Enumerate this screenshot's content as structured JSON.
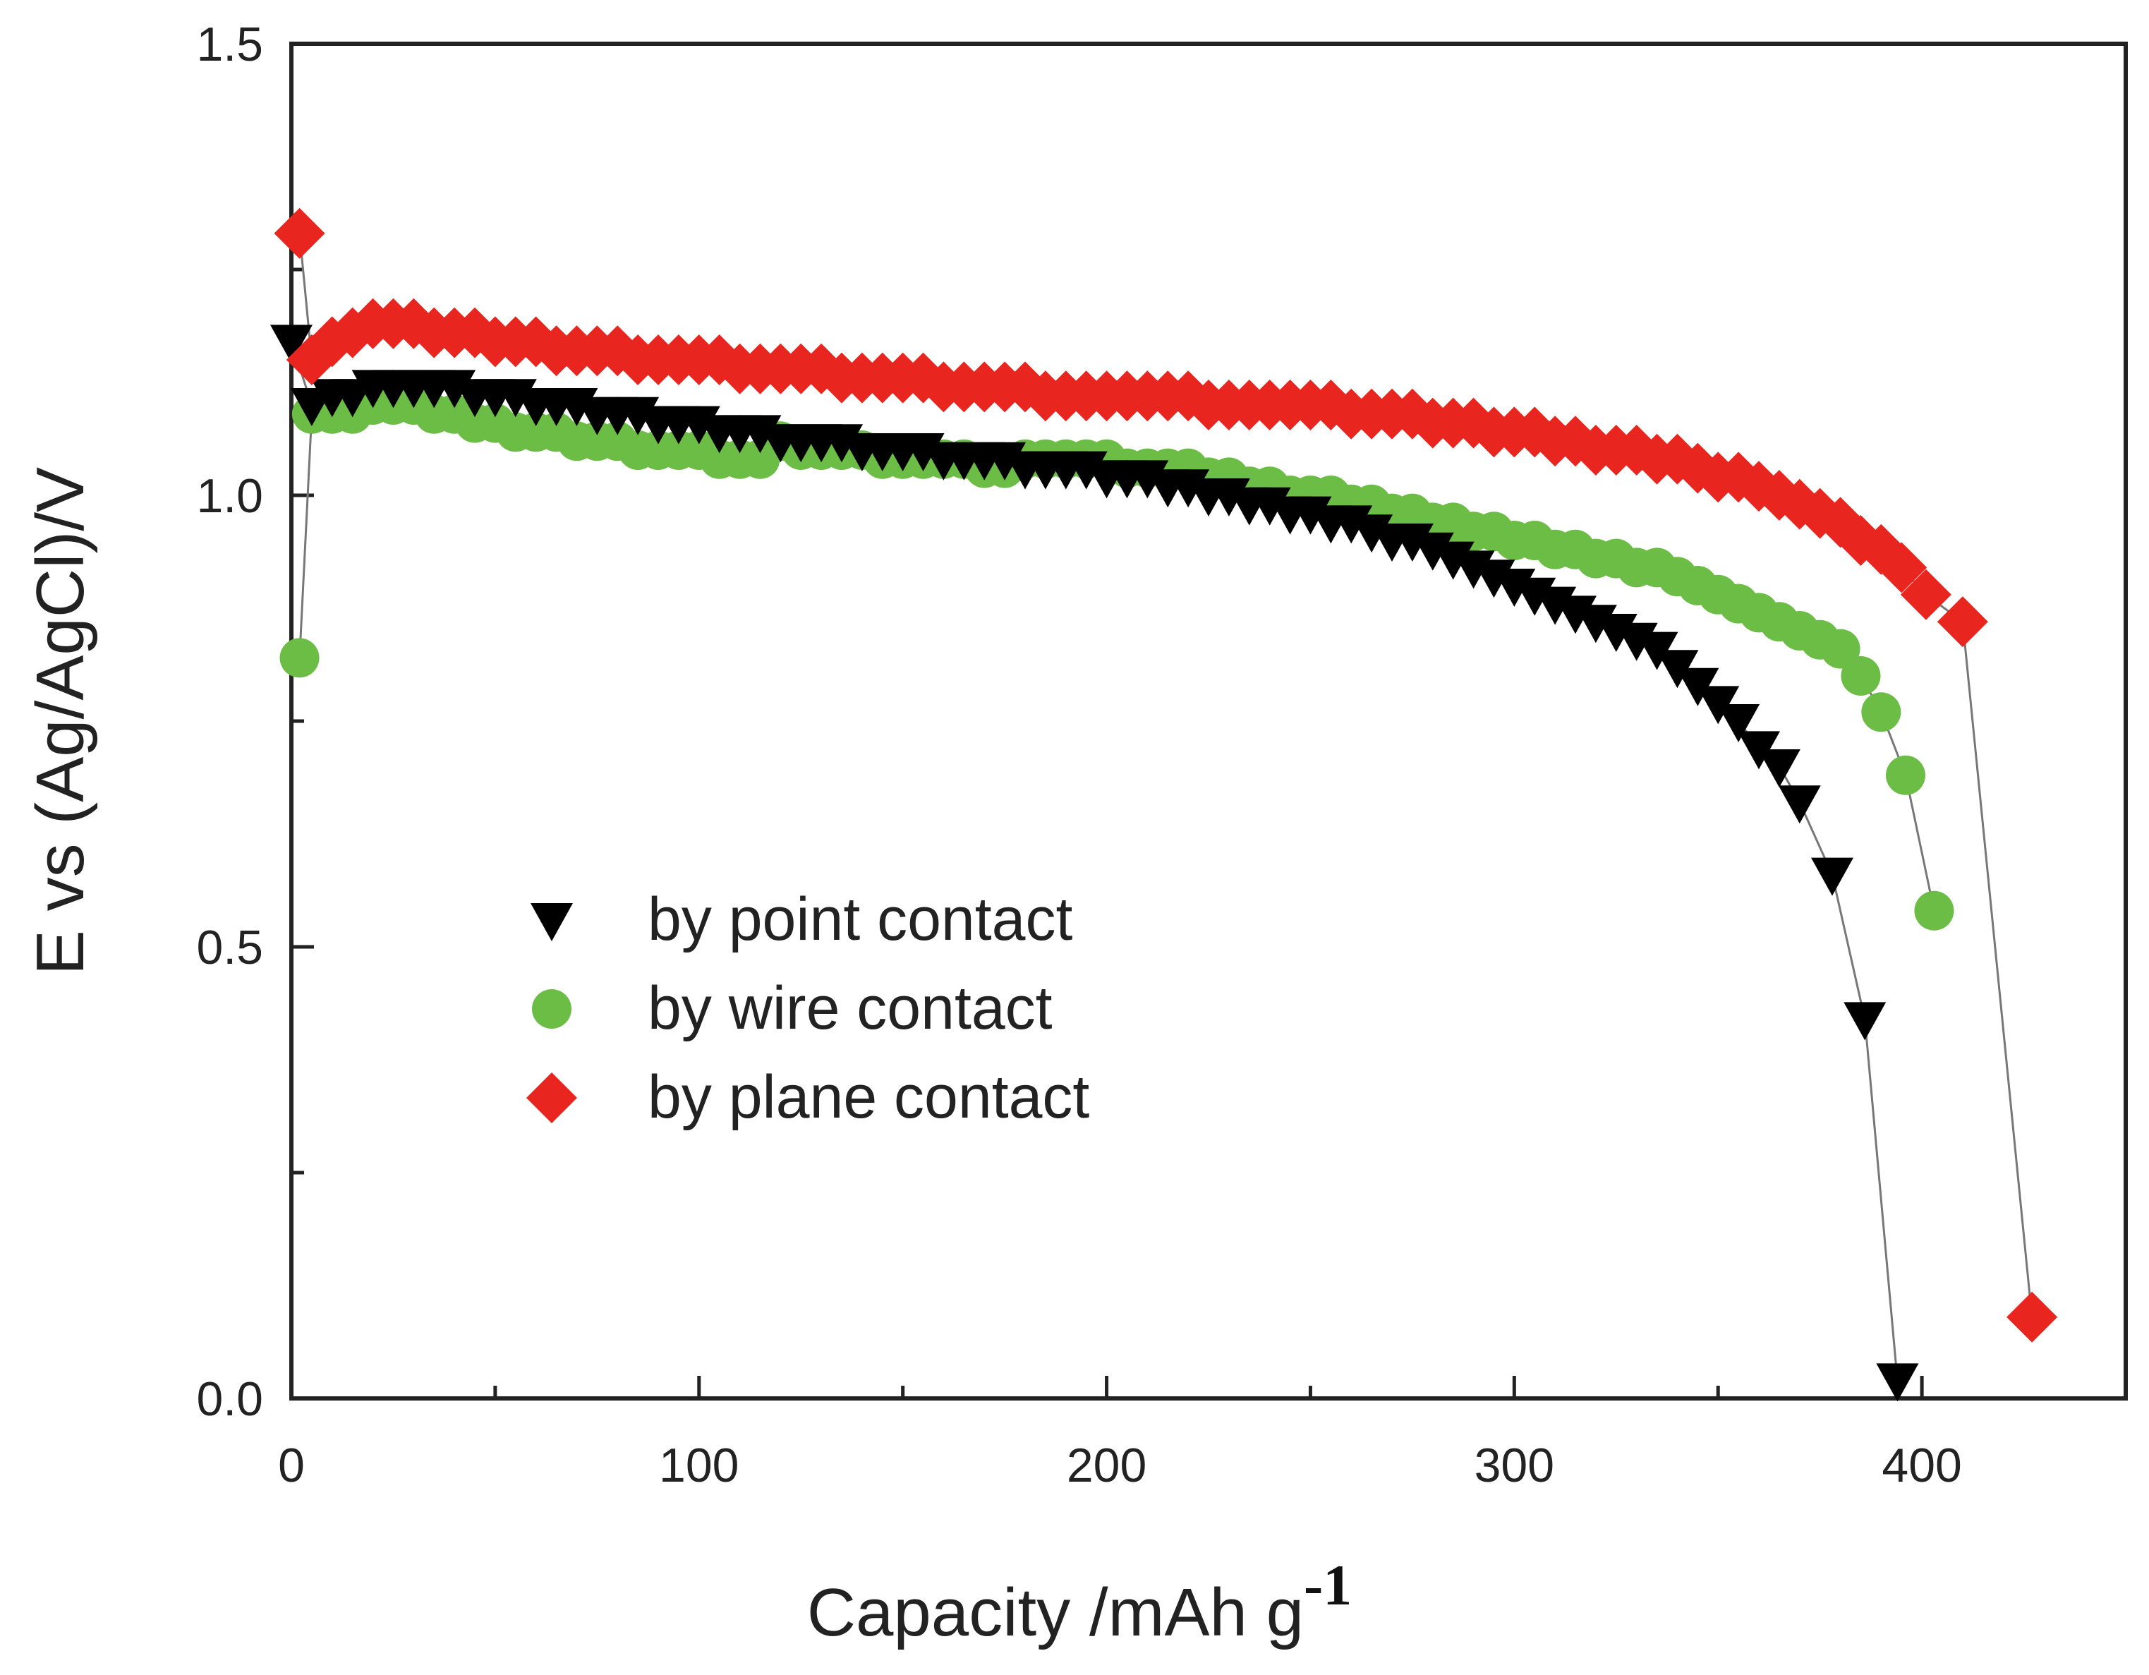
{
  "chart_data": {
    "type": "scatter",
    "title": "",
    "xlabel": "Capacity /mAh g",
    "xlabel_superscript": "-1",
    "ylabel": "E vs (Ag/AgCl)/V",
    "xlim": [
      0,
      450
    ],
    "ylim": [
      0,
      1.5
    ],
    "x_ticks": [
      "0",
      "100",
      "200",
      "300",
      "400"
    ],
    "y_ticks": [
      "0.0",
      "0.5",
      "1.0",
      "1.5"
    ],
    "grid": false,
    "legend_position": "middle-left",
    "series": [
      {
        "name": "by point contact",
        "marker": "triangle-down",
        "color": "#000000",
        "points": [
          [
            0,
            1.17
          ],
          [
            5,
            1.1
          ],
          [
            10,
            1.11
          ],
          [
            15,
            1.11
          ],
          [
            20,
            1.12
          ],
          [
            25,
            1.12
          ],
          [
            30,
            1.12
          ],
          [
            35,
            1.12
          ],
          [
            40,
            1.12
          ],
          [
            45,
            1.11
          ],
          [
            50,
            1.11
          ],
          [
            55,
            1.11
          ],
          [
            60,
            1.1
          ],
          [
            65,
            1.1
          ],
          [
            70,
            1.1
          ],
          [
            75,
            1.09
          ],
          [
            80,
            1.09
          ],
          [
            85,
            1.09
          ],
          [
            90,
            1.08
          ],
          [
            95,
            1.08
          ],
          [
            100,
            1.08
          ],
          [
            105,
            1.07
          ],
          [
            110,
            1.07
          ],
          [
            115,
            1.07
          ],
          [
            120,
            1.06
          ],
          [
            125,
            1.06
          ],
          [
            130,
            1.06
          ],
          [
            135,
            1.06
          ],
          [
            140,
            1.05
          ],
          [
            145,
            1.05
          ],
          [
            150,
            1.05
          ],
          [
            155,
            1.05
          ],
          [
            160,
            1.04
          ],
          [
            165,
            1.04
          ],
          [
            170,
            1.04
          ],
          [
            175,
            1.04
          ],
          [
            180,
            1.03
          ],
          [
            185,
            1.03
          ],
          [
            190,
            1.03
          ],
          [
            195,
            1.03
          ],
          [
            200,
            1.02
          ],
          [
            205,
            1.02
          ],
          [
            210,
            1.02
          ],
          [
            215,
            1.01
          ],
          [
            220,
            1.01
          ],
          [
            225,
            1.0
          ],
          [
            230,
            1.0
          ],
          [
            235,
            0.99
          ],
          [
            240,
            0.99
          ],
          [
            245,
            0.98
          ],
          [
            250,
            0.98
          ],
          [
            255,
            0.97
          ],
          [
            260,
            0.97
          ],
          [
            265,
            0.96
          ],
          [
            270,
            0.95
          ],
          [
            275,
            0.95
          ],
          [
            280,
            0.94
          ],
          [
            285,
            0.93
          ],
          [
            290,
            0.92
          ],
          [
            295,
            0.91
          ],
          [
            300,
            0.9
          ],
          [
            305,
            0.89
          ],
          [
            310,
            0.88
          ],
          [
            315,
            0.87
          ],
          [
            320,
            0.86
          ],
          [
            325,
            0.85
          ],
          [
            330,
            0.84
          ],
          [
            335,
            0.83
          ],
          [
            340,
            0.81
          ],
          [
            345,
            0.79
          ],
          [
            350,
            0.77
          ],
          [
            355,
            0.75
          ],
          [
            360,
            0.72
          ],
          [
            365,
            0.7
          ],
          [
            370,
            0.66
          ],
          [
            378,
            0.58
          ],
          [
            386,
            0.42
          ],
          [
            394,
            0.02
          ]
        ]
      },
      {
        "name": "by wire contact",
        "marker": "circle",
        "color": "#6cbd45",
        "points": [
          [
            2,
            0.82
          ],
          [
            5,
            1.09
          ],
          [
            10,
            1.09
          ],
          [
            15,
            1.09
          ],
          [
            20,
            1.1
          ],
          [
            25,
            1.1
          ],
          [
            30,
            1.1
          ],
          [
            35,
            1.09
          ],
          [
            40,
            1.09
          ],
          [
            45,
            1.08
          ],
          [
            50,
            1.08
          ],
          [
            55,
            1.07
          ],
          [
            60,
            1.07
          ],
          [
            65,
            1.07
          ],
          [
            70,
            1.06
          ],
          [
            75,
            1.06
          ],
          [
            80,
            1.06
          ],
          [
            85,
            1.05
          ],
          [
            90,
            1.05
          ],
          [
            95,
            1.05
          ],
          [
            100,
            1.05
          ],
          [
            105,
            1.04
          ],
          [
            110,
            1.04
          ],
          [
            115,
            1.04
          ],
          [
            120,
            1.06
          ],
          [
            125,
            1.05
          ],
          [
            130,
            1.05
          ],
          [
            135,
            1.05
          ],
          [
            140,
            1.05
          ],
          [
            145,
            1.04
          ],
          [
            150,
            1.04
          ],
          [
            155,
            1.04
          ],
          [
            160,
            1.04
          ],
          [
            165,
            1.04
          ],
          [
            170,
            1.03
          ],
          [
            175,
            1.03
          ],
          [
            180,
            1.04
          ],
          [
            185,
            1.04
          ],
          [
            190,
            1.04
          ],
          [
            195,
            1.04
          ],
          [
            200,
            1.04
          ],
          [
            205,
            1.03
          ],
          [
            210,
            1.03
          ],
          [
            215,
            1.03
          ],
          [
            220,
            1.03
          ],
          [
            225,
            1.02
          ],
          [
            230,
            1.02
          ],
          [
            235,
            1.01
          ],
          [
            240,
            1.01
          ],
          [
            245,
            1.0
          ],
          [
            250,
            1.0
          ],
          [
            255,
            1.0
          ],
          [
            260,
            0.99
          ],
          [
            265,
            0.99
          ],
          [
            270,
            0.98
          ],
          [
            275,
            0.98
          ],
          [
            280,
            0.97
          ],
          [
            285,
            0.97
          ],
          [
            290,
            0.96
          ],
          [
            295,
            0.96
          ],
          [
            300,
            0.95
          ],
          [
            305,
            0.95
          ],
          [
            310,
            0.94
          ],
          [
            315,
            0.94
          ],
          [
            320,
            0.93
          ],
          [
            325,
            0.93
          ],
          [
            330,
            0.92
          ],
          [
            335,
            0.92
          ],
          [
            340,
            0.91
          ],
          [
            345,
            0.9
          ],
          [
            350,
            0.89
          ],
          [
            355,
            0.88
          ],
          [
            360,
            0.87
          ],
          [
            365,
            0.86
          ],
          [
            370,
            0.85
          ],
          [
            375,
            0.84
          ],
          [
            380,
            0.83
          ],
          [
            385,
            0.8
          ],
          [
            390,
            0.76
          ],
          [
            396,
            0.69
          ],
          [
            403,
            0.54
          ]
        ]
      },
      {
        "name": "by plane contact",
        "marker": "diamond",
        "color": "#e8251f",
        "points": [
          [
            2,
            1.29
          ],
          [
            5,
            1.15
          ],
          [
            10,
            1.17
          ],
          [
            15,
            1.18
          ],
          [
            20,
            1.19
          ],
          [
            25,
            1.19
          ],
          [
            30,
            1.19
          ],
          [
            35,
            1.18
          ],
          [
            40,
            1.18
          ],
          [
            45,
            1.18
          ],
          [
            50,
            1.17
          ],
          [
            55,
            1.17
          ],
          [
            60,
            1.17
          ],
          [
            65,
            1.16
          ],
          [
            70,
            1.16
          ],
          [
            75,
            1.16
          ],
          [
            80,
            1.16
          ],
          [
            85,
            1.15
          ],
          [
            90,
            1.15
          ],
          [
            95,
            1.15
          ],
          [
            100,
            1.15
          ],
          [
            105,
            1.15
          ],
          [
            110,
            1.14
          ],
          [
            115,
            1.14
          ],
          [
            120,
            1.14
          ],
          [
            125,
            1.14
          ],
          [
            130,
            1.14
          ],
          [
            135,
            1.13
          ],
          [
            140,
            1.13
          ],
          [
            145,
            1.13
          ],
          [
            150,
            1.13
          ],
          [
            155,
            1.13
          ],
          [
            160,
            1.12
          ],
          [
            165,
            1.12
          ],
          [
            170,
            1.12
          ],
          [
            175,
            1.12
          ],
          [
            180,
            1.12
          ],
          [
            185,
            1.11
          ],
          [
            190,
            1.11
          ],
          [
            195,
            1.11
          ],
          [
            200,
            1.11
          ],
          [
            205,
            1.11
          ],
          [
            210,
            1.11
          ],
          [
            215,
            1.11
          ],
          [
            220,
            1.11
          ],
          [
            225,
            1.1
          ],
          [
            230,
            1.1
          ],
          [
            235,
            1.1
          ],
          [
            240,
            1.1
          ],
          [
            245,
            1.1
          ],
          [
            250,
            1.1
          ],
          [
            255,
            1.1
          ],
          [
            260,
            1.09
          ],
          [
            265,
            1.09
          ],
          [
            270,
            1.09
          ],
          [
            275,
            1.09
          ],
          [
            280,
            1.08
          ],
          [
            285,
            1.08
          ],
          [
            290,
            1.08
          ],
          [
            295,
            1.07
          ],
          [
            300,
            1.07
          ],
          [
            305,
            1.07
          ],
          [
            310,
            1.06
          ],
          [
            315,
            1.06
          ],
          [
            320,
            1.05
          ],
          [
            325,
            1.05
          ],
          [
            330,
            1.05
          ],
          [
            335,
            1.04
          ],
          [
            340,
            1.04
          ],
          [
            345,
            1.03
          ],
          [
            350,
            1.02
          ],
          [
            355,
            1.02
          ],
          [
            360,
            1.01
          ],
          [
            365,
            1.0
          ],
          [
            370,
            0.99
          ],
          [
            375,
            0.98
          ],
          [
            380,
            0.97
          ],
          [
            385,
            0.95
          ],
          [
            390,
            0.94
          ],
          [
            395,
            0.92
          ],
          [
            401,
            0.89
          ],
          [
            410,
            0.86
          ],
          [
            427,
            0.09
          ]
        ]
      }
    ]
  }
}
